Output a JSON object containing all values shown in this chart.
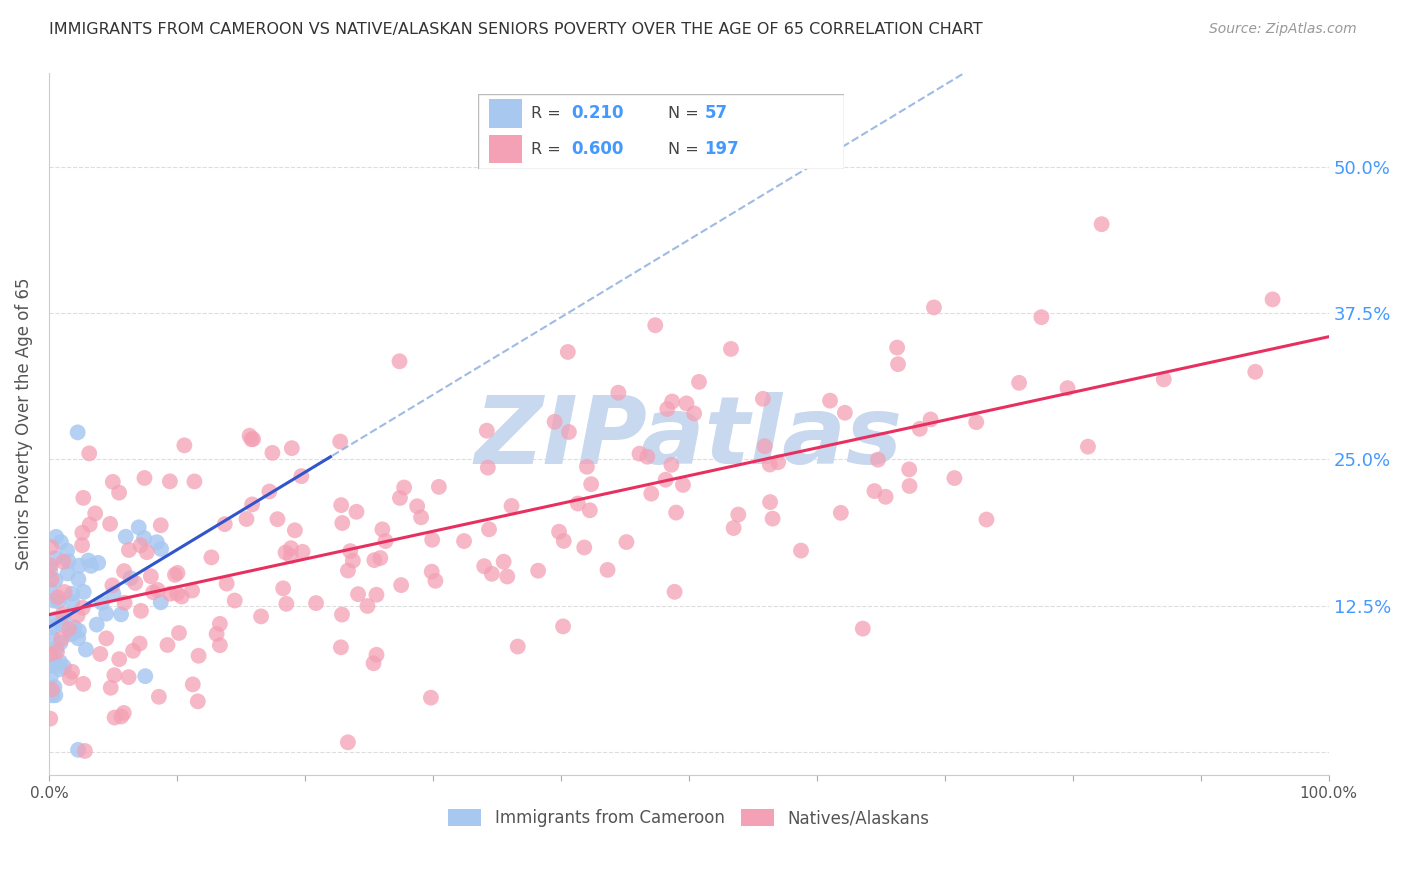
{
  "title": "IMMIGRANTS FROM CAMEROON VS NATIVE/ALASKAN SENIORS POVERTY OVER THE AGE OF 65 CORRELATION CHART",
  "source": "Source: ZipAtlas.com",
  "ylabel": "Seniors Poverty Over the Age of 65",
  "xlim": [
    0,
    1.0
  ],
  "ylim": [
    -0.02,
    0.58
  ],
  "yticks": [
    0.0,
    0.125,
    0.25,
    0.375,
    0.5
  ],
  "ytick_labels": [
    "",
    "12.5%",
    "25.0%",
    "37.5%",
    "50.0%"
  ],
  "xtick_labels": [
    "0.0%",
    "",
    "",
    "",
    "",
    "",
    "",
    "",
    "",
    "",
    "100.0%"
  ],
  "legend_label_blue": "Immigrants from Cameroon",
  "legend_label_pink": "Natives/Alaskans",
  "blue_color": "#a8c8f0",
  "pink_color": "#f4a0b5",
  "trend_blue_color": "#3355cc",
  "trend_pink_color": "#e83060",
  "trend_blue_dashed_color": "#88aadd",
  "watermark": "ZIPatlas",
  "watermark_color": "#c8d8ee",
  "background_color": "#ffffff",
  "grid_color": "#dddddd",
  "title_color": "#333333",
  "axis_label_color": "#555555",
  "right_tick_color": "#4499ff",
  "legend_r_blue": "0.210",
  "legend_n_blue": "57",
  "legend_r_pink": "0.600",
  "legend_n_pink": "197",
  "blue_intercept": 0.115,
  "blue_slope": 0.28,
  "pink_intercept": 0.118,
  "pink_slope": 0.205
}
